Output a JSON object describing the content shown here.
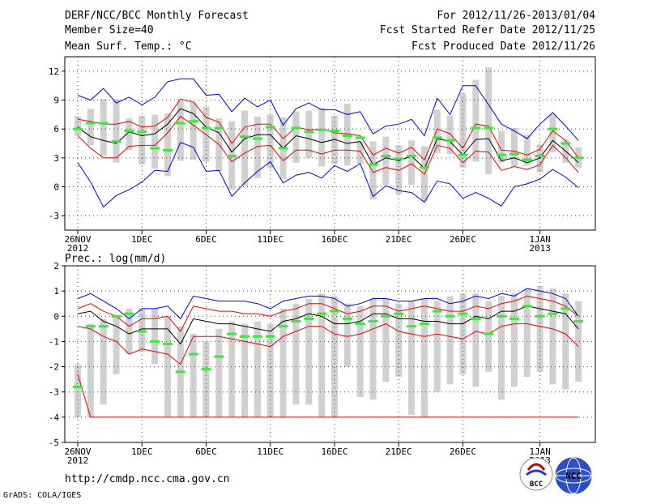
{
  "header": {
    "title": "DERF/NCC/BCC Monthly Forecast",
    "member_size": "Member Size=40",
    "variable": "Mean Surf. Temp.: °C",
    "period": "For 2012/11/26-2013/01/04",
    "started": "Fcst Started Refer Date 2012/11/25",
    "produced": "Fcst Produced Date 2012/11/26"
  },
  "footer": {
    "url": "http://cmdp.ncc.cma.gov.cn",
    "credit": "GrADS: COLA/IGES",
    "logo1_text": "BCC",
    "logo2_text": "NCC"
  },
  "colors": {
    "gray_bar": "#d0d0d0",
    "green": "#33ee33",
    "mean": "#000000",
    "red": "#ee0000",
    "blue": "#0000dd",
    "grid": "#444444"
  },
  "chart_data": [
    {
      "name": "temperature",
      "type": "box-line",
      "title": "Mean Surf. Temp.: °C",
      "xlabel": "",
      "ylabel": "°C",
      "ylim": [
        -4.5,
        13.5
      ],
      "yticks": [
        "12",
        "9",
        "6",
        "3",
        "0",
        "-3"
      ],
      "ytick_values": [
        12,
        9,
        6,
        3,
        0,
        -3
      ],
      "xticks": [
        {
          "day": 0,
          "label": "26NOV",
          "sub": "2012"
        },
        {
          "day": 5,
          "label": "1DEC"
        },
        {
          "day": 10,
          "label": "6DEC"
        },
        {
          "day": 15,
          "label": "11DEC"
        },
        {
          "day": 20,
          "label": "16DEC"
        },
        {
          "day": 25,
          "label": "21DEC"
        },
        {
          "day": 30,
          "label": "26DEC"
        },
        {
          "day": 36,
          "label": "1JAN",
          "sub": "2013"
        }
      ],
      "box_low": [
        5.3,
        4.3,
        3.2,
        2.5,
        3.8,
        2.3,
        1.9,
        1.1,
        2.7,
        2.8,
        2.6,
        1.6,
        -0.3,
        0.1,
        0.9,
        1.9,
        0.8,
        2.5,
        3.0,
        2.1,
        2.4,
        2.2,
        2.4,
        -1.3,
        0.2,
        -0.8,
        0.2,
        -1.5,
        3.5,
        3.4,
        2.0,
        2.6,
        1.3,
        2.5,
        2.1,
        2.2,
        1.5,
        3.6,
        2.5,
        2.0
      ],
      "box_high": [
        7.3,
        8.1,
        9.1,
        9.1,
        7.1,
        7.4,
        7.5,
        7.6,
        8.9,
        8.8,
        8.3,
        7.1,
        6.8,
        7.9,
        7.3,
        7.5,
        7.2,
        7.8,
        7.9,
        8.2,
        7.4,
        8.6,
        4.7,
        4.7,
        5.2,
        4.3,
        4.8,
        4.2,
        8.0,
        7.4,
        9.7,
        11.1,
        12.4,
        5.8,
        6.1,
        5.4,
        4.4,
        7.5,
        4.9,
        4.1
      ],
      "ensemble_median": [
        6.0,
        6.6,
        6.6,
        4.7,
        5.8,
        5.7,
        4.0,
        3.8,
        6.6,
        6.8,
        6.1,
        6.1,
        3.2,
        5.2,
        5.0,
        6.2,
        4.0,
        6.1,
        5.7,
        5.9,
        5.8,
        5.3,
        5.1,
        2.3,
        3.2,
        2.9,
        3.2,
        2.0,
        5.1,
        4.8,
        3.3,
        6.1,
        6.1,
        3.3,
        3.4,
        2.8,
        3.2,
        6.0,
        4.5,
        3.0
      ],
      "series": [
        {
          "name": "max",
          "color": "#0000dd",
          "values": [
            9.5,
            9.0,
            10.2,
            8.7,
            9.3,
            8.5,
            9.3,
            10.9,
            11.2,
            11.2,
            9.5,
            9.6,
            7.8,
            9.2,
            8.3,
            9.0,
            6.4,
            8.1,
            8.7,
            8.0,
            8.0,
            7.5,
            7.8,
            5.5,
            6.3,
            6.5,
            7.0,
            5.3,
            9.2,
            7.5,
            10.5,
            10.5,
            8.5,
            6.5,
            5.8,
            5.0,
            6.5,
            7.7,
            6.3,
            4.8
          ]
        },
        {
          "name": "upper",
          "color": "#ee0000",
          "values": [
            7.0,
            6.8,
            6.5,
            6.5,
            6.8,
            6.2,
            6.3,
            7.2,
            9.1,
            8.8,
            7.2,
            6.7,
            4.5,
            6.2,
            6.5,
            6.5,
            5.0,
            6.2,
            5.9,
            6.0,
            5.6,
            5.5,
            5.3,
            3.3,
            4.0,
            3.5,
            4.1,
            2.8,
            6.0,
            5.5,
            4.0,
            6.5,
            6.3,
            3.8,
            3.7,
            3.3,
            3.9,
            5.8,
            4.8,
            3.0
          ]
        },
        {
          "name": "mean",
          "color": "#000000",
          "values": [
            6.2,
            5.2,
            4.8,
            4.5,
            5.7,
            5.3,
            5.5,
            6.5,
            8.1,
            7.6,
            6.2,
            5.6,
            3.6,
            5.0,
            5.4,
            5.4,
            4.0,
            5.3,
            5.0,
            4.6,
            4.9,
            4.5,
            4.7,
            2.3,
            3.0,
            2.7,
            3.2,
            1.9,
            5.0,
            4.7,
            3.3,
            4.9,
            5.0,
            2.7,
            3.0,
            2.5,
            3.0,
            4.8,
            3.7,
            2.5
          ]
        },
        {
          "name": "lower",
          "color": "#ee0000",
          "values": [
            5.3,
            4.0,
            3.0,
            3.0,
            4.2,
            4.3,
            4.3,
            5.6,
            7.3,
            6.4,
            5.4,
            4.4,
            2.6,
            3.5,
            4.2,
            4.3,
            2.7,
            3.8,
            3.8,
            3.4,
            3.8,
            3.8,
            3.7,
            1.5,
            2.0,
            1.7,
            2.4,
            1.3,
            4.3,
            4.0,
            2.5,
            3.7,
            3.6,
            1.7,
            2.1,
            1.8,
            2.3,
            4.3,
            3.0,
            1.5
          ]
        },
        {
          "name": "min",
          "color": "#0000dd",
          "values": [
            2.5,
            0.5,
            -2.1,
            -0.9,
            -0.3,
            0.5,
            1.7,
            1.6,
            4.6,
            4.1,
            1.6,
            1.7,
            -1.0,
            0.4,
            1.6,
            2.6,
            0.4,
            1.2,
            1.5,
            0.9,
            2.2,
            1.6,
            2.4,
            -1.0,
            0.1,
            -0.4,
            -0.6,
            -1.6,
            0.6,
            0.3,
            -1.2,
            -0.6,
            -1.2,
            -2.0,
            0.0,
            0.3,
            0.8,
            1.8,
            1.0,
            -0.1
          ]
        }
      ]
    },
    {
      "name": "precipitation",
      "type": "box-line",
      "title": "Prec.: log(mm/d)",
      "xlabel": "",
      "ylabel": "log(mm/d)",
      "ylim": [
        -5,
        2
      ],
      "yticks": [
        "2",
        "1",
        "0",
        "-1",
        "-2",
        "-3",
        "-4",
        "-5"
      ],
      "ytick_values": [
        2,
        1,
        0,
        -1,
        -2,
        -3,
        -4,
        -5
      ],
      "xticks": [
        {
          "day": 0,
          "label": "26NOV",
          "sub": "2012"
        },
        {
          "day": 5,
          "label": "1DEC"
        },
        {
          "day": 10,
          "label": "6DEC"
        },
        {
          "day": 15,
          "label": "11DEC"
        },
        {
          "day": 20,
          "label": "16DEC"
        },
        {
          "day": 25,
          "label": "21DEC"
        },
        {
          "day": 30,
          "label": "26DEC"
        },
        {
          "day": 36,
          "label": "1JAN",
          "sub": "2013"
        }
      ],
      "box_low": [
        -4.0,
        -4.0,
        -3.5,
        -2.3,
        -1.5,
        -1.4,
        -1.9,
        -4.0,
        -4.0,
        -4.0,
        -4.0,
        -4.0,
        -4.0,
        -4.0,
        -4.0,
        -4.0,
        -4.0,
        -3.5,
        -3.5,
        -4.0,
        -4.0,
        -2.0,
        -3.2,
        -3.3,
        -2.6,
        -2.4,
        -3.9,
        -4.0,
        -3.0,
        -2.7,
        -2.3,
        -2.8,
        -2.2,
        -3.3,
        -2.8,
        -2.4,
        -2.2,
        -2.7,
        -2.9,
        -2.6
      ],
      "box_high": [
        -1.9,
        -0.3,
        -0.1,
        0.0,
        0.3,
        0.3,
        0.3,
        0.0,
        -0.4,
        -0.7,
        -1.0,
        -0.5,
        -0.2,
        -0.3,
        -0.2,
        -0.3,
        0.3,
        0.5,
        0.7,
        0.9,
        0.8,
        0.5,
        0.4,
        0.7,
        0.7,
        0.5,
        0.6,
        0.7,
        0.6,
        0.8,
        0.9,
        0.9,
        0.6,
        0.8,
        0.9,
        1.1,
        1.2,
        1.1,
        0.9,
        0.6
      ],
      "ensemble_median": [
        -2.8,
        -0.4,
        -0.4,
        0.0,
        0.1,
        -0.6,
        -1.0,
        -1.1,
        -2.2,
        -1.5,
        -2.1,
        -1.6,
        -0.7,
        -0.8,
        -0.8,
        -0.8,
        -0.4,
        -0.2,
        -0.1,
        0.1,
        0.2,
        -0.1,
        -0.3,
        -0.2,
        0.0,
        0.1,
        -0.4,
        -0.3,
        0.2,
        0.0,
        0.1,
        -0.1,
        -0.7,
        0.0,
        -0.1,
        0.4,
        0.0,
        0.1,
        0.3,
        -0.2
      ],
      "series": [
        {
          "name": "max",
          "color": "#0000dd",
          "values": [
            0.7,
            0.9,
            0.6,
            0.3,
            -0.1,
            0.3,
            0.3,
            0.4,
            -0.1,
            0.8,
            0.7,
            0.6,
            0.6,
            0.6,
            0.5,
            0.3,
            0.6,
            0.7,
            0.8,
            0.8,
            0.7,
            0.4,
            0.5,
            0.7,
            0.7,
            0.6,
            0.6,
            0.7,
            0.7,
            0.5,
            0.6,
            0.8,
            0.7,
            0.9,
            0.8,
            1.1,
            1.0,
            0.9,
            0.7,
            0.0
          ]
        },
        {
          "name": "upper",
          "color": "#ee0000",
          "values": [
            0.3,
            0.5,
            0.2,
            0.0,
            -0.4,
            -0.1,
            -0.1,
            0.0,
            -0.6,
            0.4,
            0.3,
            0.2,
            0.2,
            0.1,
            0.1,
            0.0,
            0.2,
            0.3,
            0.5,
            0.5,
            0.3,
            0.1,
            0.2,
            0.4,
            0.4,
            0.2,
            0.3,
            0.4,
            0.3,
            0.2,
            0.2,
            0.4,
            0.3,
            0.5,
            0.6,
            0.8,
            0.7,
            0.6,
            0.4,
            0.0
          ]
        },
        {
          "name": "mean",
          "color": "#000000",
          "values": [
            0.1,
            0.2,
            -0.2,
            -0.4,
            -0.7,
            -0.5,
            -0.5,
            -0.5,
            -1.1,
            -0.1,
            -0.2,
            -0.3,
            -0.3,
            -0.4,
            -0.5,
            -0.6,
            -0.2,
            -0.1,
            0.1,
            0.0,
            -0.3,
            -0.3,
            -0.2,
            0.1,
            0.1,
            -0.1,
            -0.1,
            -0.2,
            -0.2,
            -0.3,
            -0.3,
            0.0,
            -0.1,
            0.2,
            0.2,
            0.4,
            0.3,
            0.2,
            0.1,
            -0.5
          ]
        },
        {
          "name": "lower",
          "color": "#ee0000",
          "values": [
            -0.4,
            -0.5,
            -0.8,
            -1.0,
            -1.5,
            -1.3,
            -1.4,
            -1.5,
            -1.9,
            -0.8,
            -0.8,
            -0.8,
            -0.9,
            -1.0,
            -1.1,
            -1.2,
            -0.8,
            -0.6,
            -0.4,
            -0.4,
            -0.7,
            -0.8,
            -0.7,
            -0.5,
            -0.3,
            -0.6,
            -0.7,
            -0.8,
            -0.7,
            -0.8,
            -0.9,
            -0.6,
            -0.7,
            -0.4,
            -0.3,
            -0.3,
            -0.4,
            -0.5,
            -0.7,
            -1.2
          ]
        },
        {
          "name": "min",
          "color": "#ee0000",
          "values": [
            -2.3,
            -4.0,
            -4.0,
            -4.0,
            -4.0,
            -4.0,
            -4.0,
            -4.0,
            -4.0,
            -4.0,
            -4.0,
            -4.0,
            -4.0,
            -4.0,
            -4.0,
            -4.0,
            -4.0,
            -4.0,
            -4.0,
            -4.0,
            -4.0,
            -4.0,
            -4.0,
            -4.0,
            -4.0,
            -4.0,
            -4.0,
            -4.0,
            -4.0,
            -4.0,
            -4.0,
            -4.0,
            -4.0,
            -4.0,
            -4.0,
            -4.0,
            -4.0,
            -4.0,
            -4.0,
            -4.0
          ]
        }
      ]
    }
  ]
}
